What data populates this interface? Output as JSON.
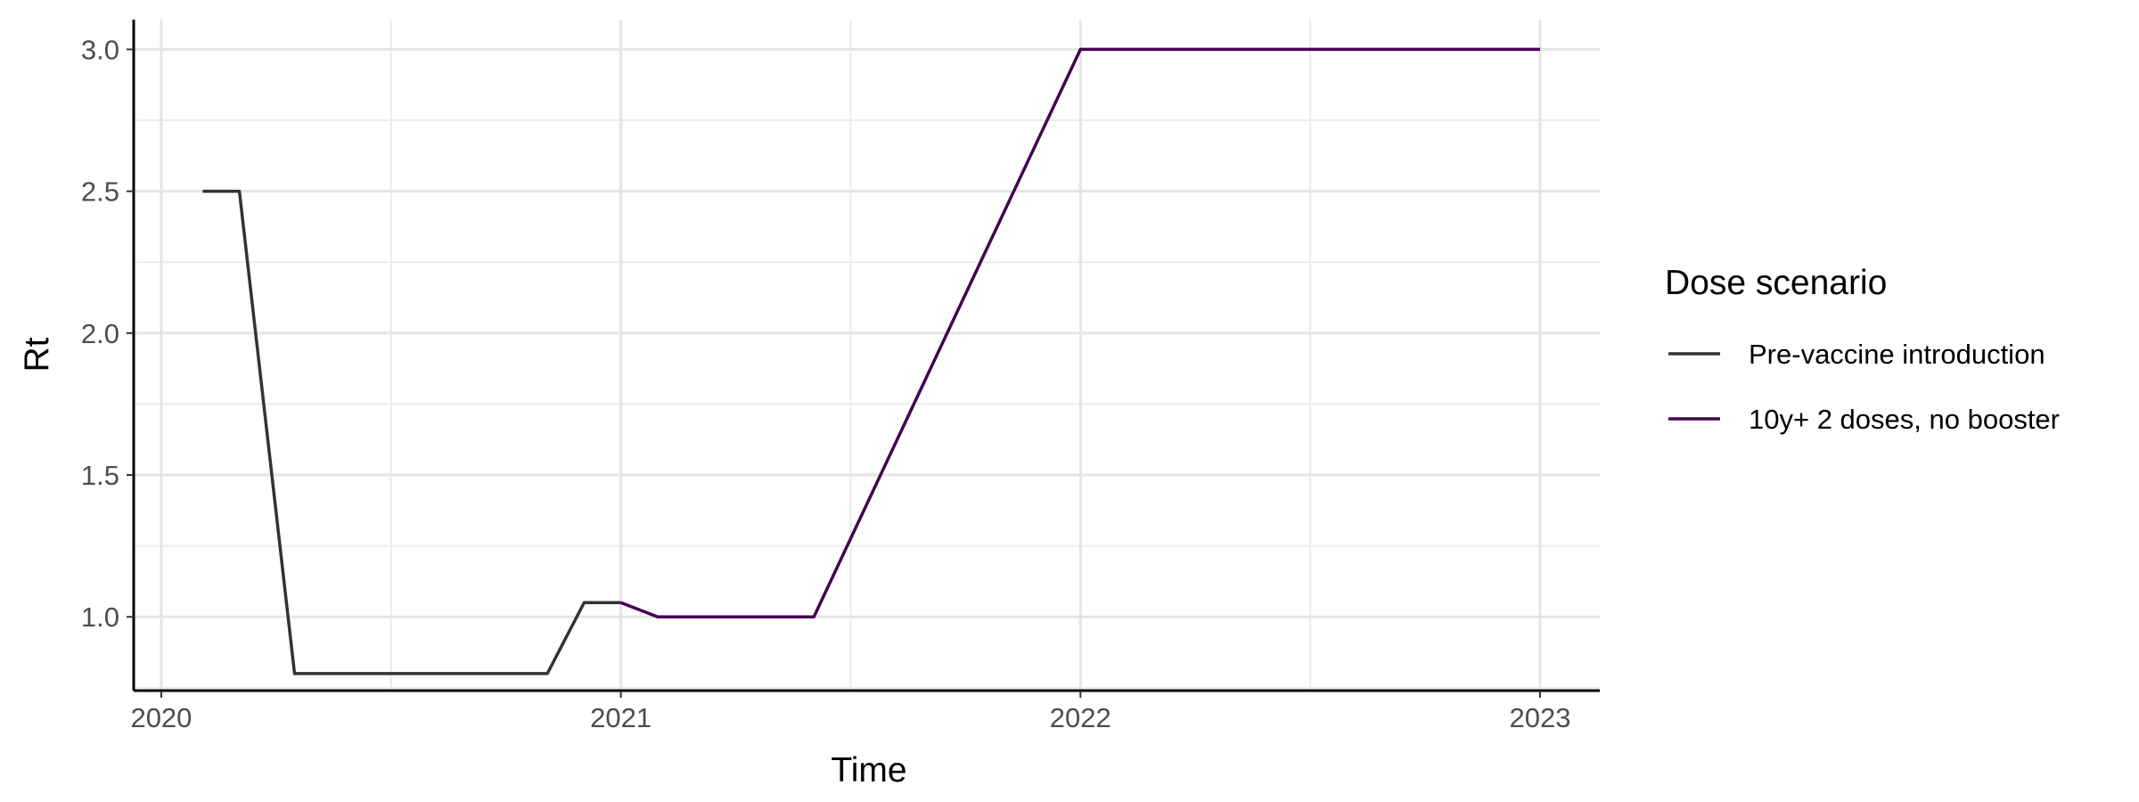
{
  "chart_data": {
    "type": "line",
    "xlabel": "Time",
    "ylabel": "Rt",
    "xlim": [
      2019.94,
      2023.13
    ],
    "ylim": [
      0.74,
      3.105
    ],
    "x_ticks": [
      {
        "value": 2020,
        "label": "2020"
      },
      {
        "value": 2021,
        "label": "2021"
      },
      {
        "value": 2022,
        "label": "2022"
      },
      {
        "value": 2023,
        "label": "2023"
      }
    ],
    "y_ticks": [
      {
        "value": 1.0,
        "label": "1.0"
      },
      {
        "value": 1.5,
        "label": "1.5"
      },
      {
        "value": 2.0,
        "label": "2.0"
      },
      {
        "value": 2.5,
        "label": "2.5"
      },
      {
        "value": 3.0,
        "label": "3.0"
      }
    ],
    "grid": true,
    "legend": {
      "title": "Dose scenario",
      "position": "right"
    },
    "series": [
      {
        "name": "Pre-vaccine introduction",
        "color": "#333333",
        "points": [
          [
            2020.09,
            2.5
          ],
          [
            2020.17,
            2.5
          ],
          [
            2020.29,
            0.8
          ],
          [
            2020.84,
            0.8
          ],
          [
            2020.92,
            1.05
          ],
          [
            2021.0,
            1.05
          ]
        ]
      },
      {
        "name": "10y+ 2 doses, no booster",
        "color": "#440154",
        "points": [
          [
            2021.0,
            1.05
          ],
          [
            2021.08,
            1.0
          ],
          [
            2021.42,
            1.0
          ],
          [
            2022.0,
            3.0
          ],
          [
            2023.0,
            3.0
          ]
        ]
      }
    ]
  }
}
